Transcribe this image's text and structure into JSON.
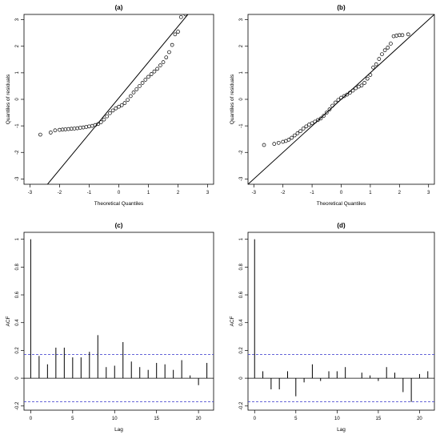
{
  "chart_data": [
    {
      "type": "scatter",
      "title": "(a)",
      "xlabel": "Theoretical Quantiles",
      "ylabel": "Quantiles of residuals",
      "xlim": [
        -3.2,
        3.2
      ],
      "ylim": [
        -3.2,
        3.2
      ],
      "x_ticks": [
        -3,
        -2,
        -1,
        0,
        1,
        2,
        3
      ],
      "y_ticks": [
        -3,
        -2,
        -1,
        0,
        1,
        2,
        3
      ],
      "reference_line": {
        "intercept": 0.05,
        "slope": 1.35
      },
      "points": [
        [
          -2.65,
          -1.33
        ],
        [
          -2.3,
          -1.25
        ],
        [
          -2.15,
          -1.17
        ],
        [
          -2.0,
          -1.15
        ],
        [
          -1.9,
          -1.14
        ],
        [
          -1.8,
          -1.13
        ],
        [
          -1.7,
          -1.12
        ],
        [
          -1.6,
          -1.11
        ],
        [
          -1.5,
          -1.1
        ],
        [
          -1.4,
          -1.09
        ],
        [
          -1.3,
          -1.07
        ],
        [
          -1.2,
          -1.06
        ],
        [
          -1.1,
          -1.04
        ],
        [
          -1.0,
          -1.02
        ],
        [
          -0.9,
          -1.0
        ],
        [
          -0.8,
          -0.97
        ],
        [
          -0.7,
          -0.93
        ],
        [
          -0.6,
          -0.86
        ],
        [
          -0.5,
          -0.76
        ],
        [
          -0.4,
          -0.64
        ],
        [
          -0.3,
          -0.52
        ],
        [
          -0.2,
          -0.42
        ],
        [
          -0.1,
          -0.34
        ],
        [
          0.0,
          -0.28
        ],
        [
          0.1,
          -0.22
        ],
        [
          0.2,
          -0.14
        ],
        [
          0.3,
          -0.02
        ],
        [
          0.4,
          0.12
        ],
        [
          0.5,
          0.26
        ],
        [
          0.6,
          0.38
        ],
        [
          0.7,
          0.5
        ],
        [
          0.8,
          0.62
        ],
        [
          0.9,
          0.74
        ],
        [
          1.0,
          0.85
        ],
        [
          1.1,
          0.95
        ],
        [
          1.2,
          1.05
        ],
        [
          1.3,
          1.15
        ],
        [
          1.4,
          1.28
        ],
        [
          1.5,
          1.4
        ],
        [
          1.6,
          1.58
        ],
        [
          1.7,
          1.78
        ],
        [
          1.8,
          2.05
        ],
        [
          1.9,
          2.45
        ],
        [
          2.0,
          2.55
        ],
        [
          2.1,
          3.1
        ],
        [
          2.25,
          3.2
        ]
      ]
    },
    {
      "type": "scatter",
      "title": "(b)",
      "xlabel": "Theoretical Quantiles",
      "ylabel": "Quantiles of residuals",
      "xlim": [
        -3.2,
        3.2
      ],
      "ylim": [
        -3.2,
        3.2
      ],
      "x_ticks": [
        -3,
        -2,
        -1,
        0,
        1,
        2,
        3
      ],
      "y_ticks": [
        -3,
        -2,
        -1,
        0,
        1,
        2,
        3
      ],
      "reference_line": {
        "intercept": 0.0,
        "slope": 1.0
      },
      "points": [
        [
          -2.65,
          -1.72
        ],
        [
          -2.3,
          -1.68
        ],
        [
          -2.15,
          -1.64
        ],
        [
          -2.0,
          -1.6
        ],
        [
          -1.9,
          -1.57
        ],
        [
          -1.8,
          -1.52
        ],
        [
          -1.7,
          -1.45
        ],
        [
          -1.6,
          -1.36
        ],
        [
          -1.5,
          -1.28
        ],
        [
          -1.4,
          -1.2
        ],
        [
          -1.3,
          -1.1
        ],
        [
          -1.2,
          -1.02
        ],
        [
          -1.1,
          -0.95
        ],
        [
          -1.0,
          -0.9
        ],
        [
          -0.9,
          -0.84
        ],
        [
          -0.8,
          -0.78
        ],
        [
          -0.7,
          -0.72
        ],
        [
          -0.6,
          -0.62
        ],
        [
          -0.5,
          -0.5
        ],
        [
          -0.4,
          -0.38
        ],
        [
          -0.3,
          -0.24
        ],
        [
          -0.2,
          -0.12
        ],
        [
          -0.1,
          -0.02
        ],
        [
          0.0,
          0.06
        ],
        [
          0.1,
          0.12
        ],
        [
          0.2,
          0.18
        ],
        [
          0.3,
          0.25
        ],
        [
          0.4,
          0.33
        ],
        [
          0.5,
          0.42
        ],
        [
          0.6,
          0.48
        ],
        [
          0.7,
          0.52
        ],
        [
          0.8,
          0.62
        ],
        [
          0.9,
          0.78
        ],
        [
          1.0,
          0.92
        ],
        [
          1.1,
          1.2
        ],
        [
          1.2,
          1.32
        ],
        [
          1.3,
          1.52
        ],
        [
          1.4,
          1.7
        ],
        [
          1.5,
          1.85
        ],
        [
          1.6,
          1.95
        ],
        [
          1.7,
          2.1
        ],
        [
          1.8,
          2.38
        ],
        [
          1.9,
          2.4
        ],
        [
          2.0,
          2.42
        ],
        [
          2.1,
          2.42
        ],
        [
          2.3,
          2.45
        ]
      ]
    },
    {
      "type": "bar",
      "title": "(c)",
      "xlabel": "Lag",
      "ylabel": "ACF",
      "xlim": [
        -0.8,
        21.8
      ],
      "ylim": [
        -0.23,
        1.05
      ],
      "x_ticks": [
        0,
        5,
        10,
        15,
        20
      ],
      "y_ticks": [
        -0.2,
        0.0,
        0.2,
        0.4,
        0.6,
        0.8,
        1.0
      ],
      "confidence_bounds": [
        0.17,
        -0.17
      ],
      "bound_color": "#3333cc",
      "lags": [
        0,
        1,
        2,
        3,
        4,
        5,
        6,
        7,
        8,
        9,
        10,
        11,
        12,
        13,
        14,
        15,
        16,
        17,
        18,
        19,
        20,
        21
      ],
      "values": [
        1.0,
        0.16,
        0.1,
        0.22,
        0.22,
        0.15,
        0.15,
        0.19,
        0.31,
        0.08,
        0.09,
        0.26,
        0.12,
        0.08,
        0.06,
        0.11,
        0.1,
        0.06,
        0.13,
        0.02,
        -0.05,
        0.11
      ]
    },
    {
      "type": "bar",
      "title": "(d)",
      "xlabel": "Lag",
      "ylabel": "ACF",
      "xlim": [
        -0.8,
        21.8
      ],
      "ylim": [
        -0.23,
        1.05
      ],
      "x_ticks": [
        0,
        5,
        10,
        15,
        20
      ],
      "y_ticks": [
        -0.2,
        0.0,
        0.2,
        0.4,
        0.6,
        0.8,
        1.0
      ],
      "confidence_bounds": [
        0.17,
        -0.17
      ],
      "bound_color": "#3333cc",
      "lags": [
        0,
        1,
        2,
        3,
        4,
        5,
        6,
        7,
        8,
        9,
        10,
        11,
        12,
        13,
        14,
        15,
        16,
        17,
        18,
        19,
        20,
        21
      ],
      "values": [
        1.0,
        0.05,
        -0.08,
        -0.08,
        0.05,
        -0.13,
        -0.03,
        0.1,
        -0.02,
        0.05,
        0.05,
        0.08,
        0.0,
        0.04,
        0.02,
        -0.02,
        0.08,
        0.04,
        -0.1,
        -0.17,
        0.03,
        0.05
      ]
    }
  ]
}
